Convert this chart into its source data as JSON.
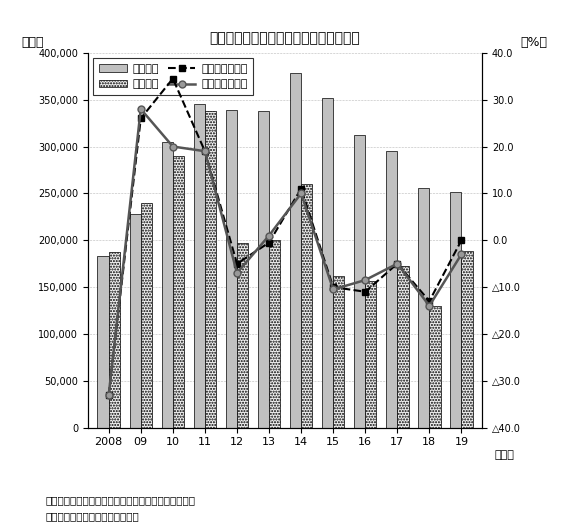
{
  "title": "図　台湾の自動車生産・販売台数の推移",
  "years": [
    2008,
    2009,
    2010,
    2011,
    2012,
    2013,
    2014,
    2015,
    2016,
    2017,
    2018,
    2019
  ],
  "year_labels": [
    "2008",
    "09",
    "10",
    "11",
    "12",
    "13",
    "14",
    "15",
    "16",
    "17",
    "18",
    "19"
  ],
  "production": [
    183000,
    228000,
    305000,
    345000,
    339000,
    338000,
    379000,
    352000,
    312000,
    295000,
    256000,
    252000
  ],
  "sales": [
    187000,
    240000,
    290000,
    338000,
    197000,
    200000,
    260000,
    162000,
    157000,
    172000,
    130000,
    188000
  ],
  "prod_growth": [
    -33.0,
    26.0,
    34.5,
    19.0,
    -5.0,
    -0.5,
    11.0,
    -10.0,
    -11.0,
    -5.0,
    -13.0,
    0.0
  ],
  "sales_growth": [
    -33.0,
    28.0,
    20.0,
    19.0,
    -7.0,
    1.0,
    10.0,
    -10.5,
    -8.5,
    -5.0,
    -14.0,
    -3.0
  ],
  "ylabel_left": "（台）",
  "ylabel_right": "（%）",
  "xlabel": "（年）",
  "note1": "（注）販売台数は輸入車を含まず、輸出向けを含む。",
  "note2": "（出所）台湾区車輌工業同業公会",
  "ylim_left": [
    0,
    400000
  ],
  "ylim_right": [
    -40,
    40
  ],
  "yticks_left": [
    0,
    50000,
    100000,
    150000,
    200000,
    250000,
    300000,
    350000,
    400000
  ],
  "ytick_labels_left": [
    "0",
    "50,000",
    "100,000",
    "150,000",
    "200,000",
    "250,000",
    "300,000",
    "350,000",
    "400,000"
  ],
  "yticks_right": [
    -40,
    -30,
    -20,
    -10,
    0,
    10,
    20,
    30,
    40
  ],
  "bar_color_prod": "#c0c0c0",
  "bar_color_sales": "#f0f0f0",
  "legend_prod": "生産台数",
  "legend_sales": "販売台数",
  "legend_prod_growth": "生産台数伸び率",
  "legend_sales_growth": "販売台数伸び率"
}
